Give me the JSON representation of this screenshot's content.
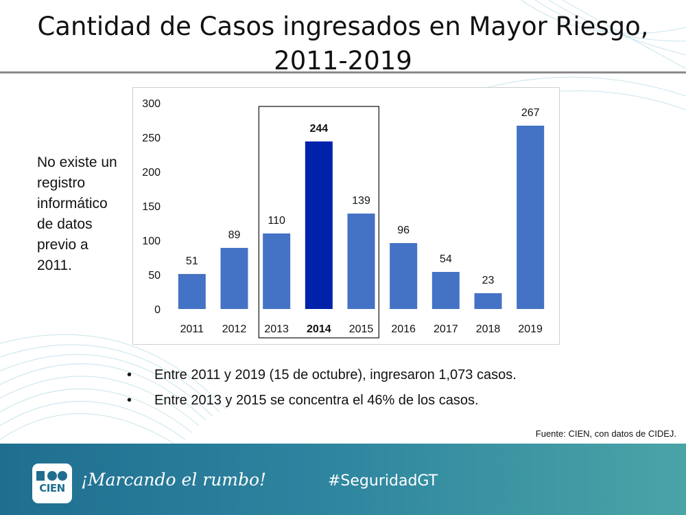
{
  "slide": {
    "title_line1": "Cantidad de Casos ingresados en Mayor Riesgo,",
    "title_line2": "2011-2019",
    "side_note": "No existe un registro informático de datos previo a 2011.",
    "bullets": [
      "Entre 2011 y 2019 (15 de octubre), ingresaron 1,073 casos.",
      "Entre 2013 y 2015 se concentra el 46% de los casos."
    ],
    "bullet_symbol": "•",
    "source": "Fuente: CIEN, con datos de CIDEJ."
  },
  "footer": {
    "logo_text": "CIEN",
    "slogan": "¡Marcando el rumbo!",
    "hashtag": "#SeguridadGT"
  },
  "chart_data": {
    "type": "bar",
    "title": "Cantidad de Casos ingresados en Mayor Riesgo, 2011-2019",
    "categories": [
      "2011",
      "2012",
      "2013",
      "2014",
      "2015",
      "2016",
      "2017",
      "2018",
      "2019"
    ],
    "values": [
      51,
      89,
      110,
      244,
      139,
      96,
      54,
      23,
      267
    ],
    "ylim": [
      0,
      300
    ],
    "yticks": [
      0,
      50,
      100,
      150,
      200,
      250,
      300
    ],
    "highlight_category": "2014",
    "highlight_range": [
      "2013",
      "2015"
    ],
    "grid": false,
    "colors": {
      "bar": "#4472c4",
      "highlight": "#0022aa",
      "text": "#111111"
    }
  },
  "theme": {
    "footer_start": "#1f6e90",
    "footer_end": "#4aa4a6",
    "deco": "#c9e4ec"
  }
}
